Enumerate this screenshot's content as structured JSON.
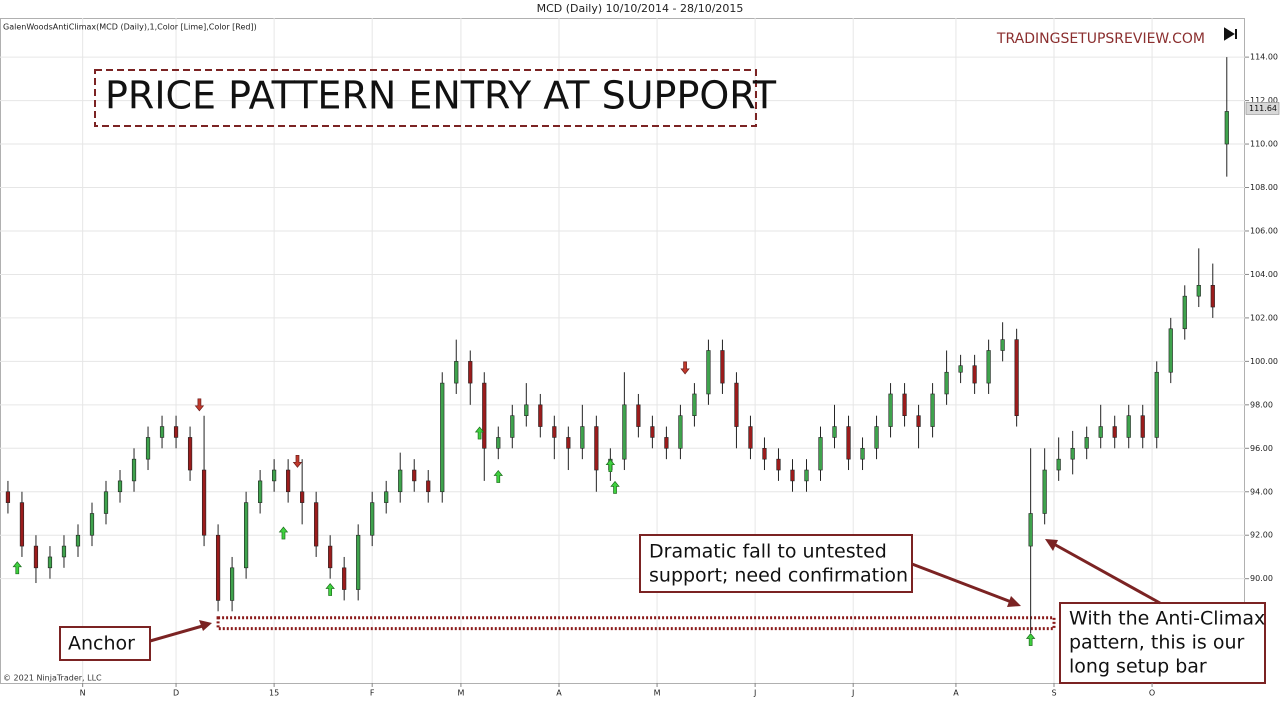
{
  "chart_data": {
    "type": "candlestick",
    "title": "MCD (Daily)  10/10/2014 - 28/10/2015",
    "indicator_label": "GalenWoodsAntiClimax(MCD (Daily),1,Color [Lime],Color [Red])",
    "watermark": "TRADINGSETUPSREVIEW.COM",
    "headline": "PRICE PATTERN ENTRY AT SUPPORT",
    "copyright": "© 2021 NinjaTrader, LLC",
    "up_color": "#3fa34d",
    "down_color": "#9b1c1c",
    "x": [
      0,
      3,
      6,
      9,
      12,
      15,
      18,
      21,
      24,
      27,
      30,
      33,
      36,
      39,
      42,
      45,
      48,
      51,
      54,
      57,
      60,
      63,
      66,
      69,
      72,
      75,
      78,
      81,
      84,
      87,
      90,
      93,
      96,
      99,
      102,
      105,
      108,
      111,
      114,
      117,
      120,
      123,
      126,
      129,
      132,
      135,
      138,
      141,
      144,
      147,
      150,
      153,
      156,
      159,
      162,
      165,
      168,
      171,
      174,
      177,
      180,
      183,
      186,
      189,
      192,
      195,
      198,
      201,
      204,
      207,
      210,
      213,
      216,
      219,
      222,
      225,
      228,
      231,
      234,
      237,
      240,
      243,
      246,
      249,
      252,
      255,
      258,
      261
    ],
    "open": [
      94,
      93.5,
      91.5,
      90.5,
      91,
      91.5,
      92,
      93,
      94,
      94.5,
      95.5,
      96.5,
      97,
      96.5,
      95,
      92,
      89,
      90.5,
      93.5,
      94.5,
      95,
      94,
      93.5,
      91.5,
      90.5,
      89.5,
      92,
      93.5,
      94,
      95,
      94.5,
      94,
      99,
      100,
      99,
      96,
      96.5,
      97.5,
      98,
      97,
      96.5,
      96,
      97,
      95,
      95.5,
      98,
      97,
      96.5,
      96,
      97.5,
      98.5,
      100.5,
      99,
      97,
      96,
      95.5,
      95,
      94.5,
      95,
      96.5,
      97,
      95.5,
      96,
      97,
      98.5,
      97.5,
      97,
      98.5,
      99.5,
      99.8,
      99,
      100.5,
      101,
      91.5,
      93,
      95,
      95.5,
      96,
      96.5,
      97,
      96.5,
      97.5,
      96.5,
      99.5,
      101.5,
      103,
      103.5,
      110
    ],
    "high": [
      94.5,
      94,
      92,
      91.5,
      92,
      92.5,
      93.5,
      94.5,
      95,
      96,
      97,
      97.5,
      97.5,
      97,
      97.5,
      92.5,
      91,
      94,
      95,
      95.5,
      95.5,
      95.5,
      94,
      92,
      91,
      92.5,
      94,
      94.5,
      95.8,
      95.5,
      95,
      99.5,
      101,
      100.5,
      99.5,
      97,
      98,
      99,
      98.5,
      97.5,
      97,
      98,
      97.5,
      96,
      99.5,
      98.5,
      97.5,
      97,
      98,
      99,
      101,
      101,
      99.5,
      97.5,
      96.5,
      96,
      95.5,
      95.5,
      97,
      98,
      97.5,
      96.5,
      97.5,
      99,
      99,
      98,
      99,
      100.5,
      100.3,
      100.3,
      101,
      101.8,
      101.5,
      96,
      96,
      96.5,
      96.8,
      97,
      98,
      97.5,
      98,
      98,
      100,
      102,
      103.5,
      105.2,
      104.5,
      114
    ],
    "low": [
      93,
      91,
      89.8,
      90,
      90.5,
      91,
      91.5,
      92.5,
      93.5,
      94,
      95,
      96,
      96,
      94.5,
      91.5,
      88.5,
      88.5,
      90,
      93,
      94,
      93.5,
      92.5,
      91,
      90,
      89,
      89,
      91.5,
      93,
      93.5,
      94,
      93.5,
      93.5,
      98.5,
      98,
      94.5,
      95.5,
      96,
      97,
      96.5,
      95.5,
      95,
      95.5,
      94,
      94.5,
      95,
      96.5,
      96,
      95.5,
      95.5,
      97,
      98,
      98.5,
      96,
      95.5,
      95,
      94.5,
      94,
      94,
      94.5,
      96,
      95,
      95,
      95.5,
      96.5,
      97,
      96,
      96.5,
      98,
      99,
      98.5,
      98.5,
      100,
      97,
      87.5,
      92.5,
      94.5,
      94.8,
      95.5,
      96,
      96,
      96,
      96,
      96,
      99,
      101,
      102.5,
      102,
      108.5
    ],
    "close": [
      93.5,
      91.5,
      90.5,
      91,
      91.5,
      92,
      93,
      94,
      94.5,
      95.5,
      96.5,
      97,
      96.5,
      95,
      92,
      89,
      90.5,
      93.5,
      94.5,
      95,
      94,
      93.5,
      91.5,
      90.5,
      89.5,
      92,
      93.5,
      94,
      95,
      94.5,
      94,
      99,
      100,
      99,
      96,
      96.5,
      97.5,
      98,
      97,
      96.5,
      96,
      97,
      95,
      95.5,
      98,
      97,
      96.5,
      96,
      97.5,
      98.5,
      100.5,
      99,
      97,
      96,
      95.5,
      95,
      94.5,
      95,
      96.5,
      97,
      95.5,
      96,
      97,
      98.5,
      97.5,
      97,
      98.5,
      99.5,
      99.8,
      99,
      100.5,
      101,
      97.5,
      93,
      95,
      95.5,
      96,
      96.5,
      97,
      96.5,
      97.5,
      96.5,
      99.5,
      101.5,
      103,
      103.5,
      102.5,
      111.5
    ],
    "long_signals": {
      "x": [
        2,
        59,
        69,
        101,
        105,
        129,
        130,
        219
      ],
      "y": [
        90.5,
        92.1,
        89.5,
        96.7,
        94.7,
        95.2,
        94.2,
        87.2
      ]
    },
    "short_signals": {
      "x": [
        41,
        62,
        145
      ],
      "y": [
        98,
        95.4,
        99.7
      ]
    },
    "support_zone": {
      "x": [
        45,
        224
      ],
      "y": [
        87.7,
        88.2
      ]
    },
    "last_price": 111.64,
    "xlim": [
      -1.7,
      264.9
    ],
    "ylim": [
      85.2,
      115.8
    ],
    "xticks": [
      {
        "value": 16,
        "label": "N"
      },
      {
        "value": 36,
        "label": "D"
      },
      {
        "value": 57,
        "label": "15"
      },
      {
        "value": 78,
        "label": "F"
      },
      {
        "value": 97,
        "label": "M"
      },
      {
        "value": 118,
        "label": "A"
      },
      {
        "value": 139,
        "label": "M"
      },
      {
        "value": 160,
        "label": "J"
      },
      {
        "value": 181,
        "label": "J"
      },
      {
        "value": 203,
        "label": "A"
      },
      {
        "value": 224,
        "label": "S"
      },
      {
        "value": 245,
        "label": "O"
      }
    ],
    "yticks": [
      {
        "value": 90,
        "label": "90.00"
      },
      {
        "value": 92,
        "label": "92.00"
      },
      {
        "value": 94,
        "label": "94.00"
      },
      {
        "value": 96,
        "label": "96.00"
      },
      {
        "value": 98,
        "label": "98.00"
      },
      {
        "value": 100,
        "label": "100.00"
      },
      {
        "value": 102,
        "label": "102.00"
      },
      {
        "value": 104,
        "label": "104.00"
      },
      {
        "value": 106,
        "label": "106.00"
      },
      {
        "value": 108,
        "label": "108.00"
      },
      {
        "value": 110,
        "label": "110.00"
      },
      {
        "value": 112,
        "label": "112.00"
      },
      {
        "value": 114,
        "label": "114.00"
      }
    ],
    "grid": true,
    "annotations": {
      "anchor": "Anchor",
      "fall": [
        "Dramatic fall to untested",
        "support; need confirmation"
      ],
      "setup": [
        "With the Anti-Climax",
        "pattern, this is our",
        "long setup bar"
      ]
    }
  }
}
